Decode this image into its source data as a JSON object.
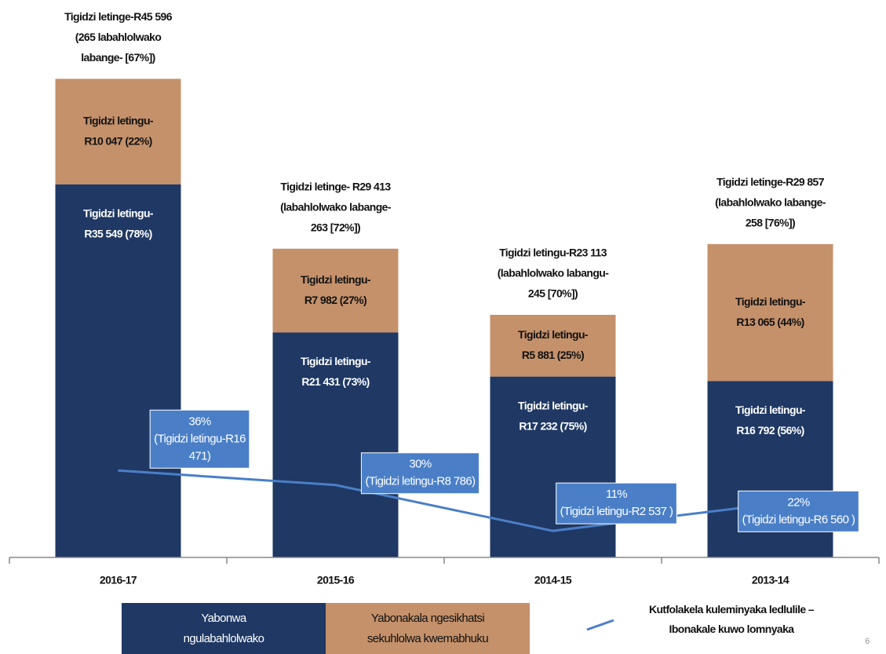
{
  "chart_data": {
    "type": "stacked-bar-line",
    "categories": [
      "2016-17",
      "2015-16",
      "2014-15",
      "2013-14"
    ],
    "ylim": [
      0,
      46000
    ],
    "y2lim": [
      0,
      200
    ],
    "series": [
      {
        "name": "Yabonwa ngulabahlolwako",
        "color": "#1f3864",
        "values": [
          35549,
          21431,
          17232,
          16792
        ],
        "value_labels": [
          [
            "Tigidzi letingu-",
            "R35 549 (78%)"
          ],
          [
            "Tigidzi letingu-",
            "R21 431 (73%)"
          ],
          [
            "Tigidzi letingu-",
            "R17 232 (75%)"
          ],
          [
            "Tigidzi letingu-",
            "R16 792 (56%)"
          ]
        ]
      },
      {
        "name": "Yabonakala ngesikhatsi sekuhlolwa kwemabhuku",
        "color": "#c4916b",
        "values": [
          10047,
          7982,
          5881,
          13065
        ],
        "value_labels": [
          [
            "Tigidzi letingu-",
            "R10 047 (22%)"
          ],
          [
            "Tigidzi letingu-",
            "R7 982 (27%)"
          ],
          [
            "Tigidzi letingu-",
            "R5 881 (25%)"
          ],
          [
            "Tigidzi letingu-",
            "R13 065 (44%)"
          ]
        ]
      },
      {
        "name": "Kutfolakela kuleminyaka ledlulile – Ibonakale kuwo lomnyaka",
        "color": "#4a7fc8",
        "axis": "y2",
        "line": true,
        "values": [
          36,
          30,
          11,
          22
        ],
        "value_labels": [
          [
            "36%",
            "(Tigidzi letingu-R16",
            "471)"
          ],
          [
            "30%",
            "(Tigidzi letingu-R8 786)"
          ],
          [
            "11%",
            "(Tigidzi letingu-R2 537 )"
          ],
          [
            "22%",
            "(Tigidzi letingu-R6 560 )"
          ]
        ]
      }
    ],
    "total_labels": [
      [
        "Tigidzi letinge-R45 596",
        "(265 labahlolwako",
        "labange- [67%])"
      ],
      [
        "Tigidzi letinge- R29 413",
        "(labahlolwako labange-",
        "263  [72%])"
      ],
      [
        "Tigidzi letingu-R23 113",
        "(labahlolwako labangu-",
        "245 [70%])"
      ],
      [
        "Tigidzi letinge-R29 857",
        "(labahlolwako labange-",
        "258  [76%])"
      ]
    ],
    "page_number": "6"
  }
}
